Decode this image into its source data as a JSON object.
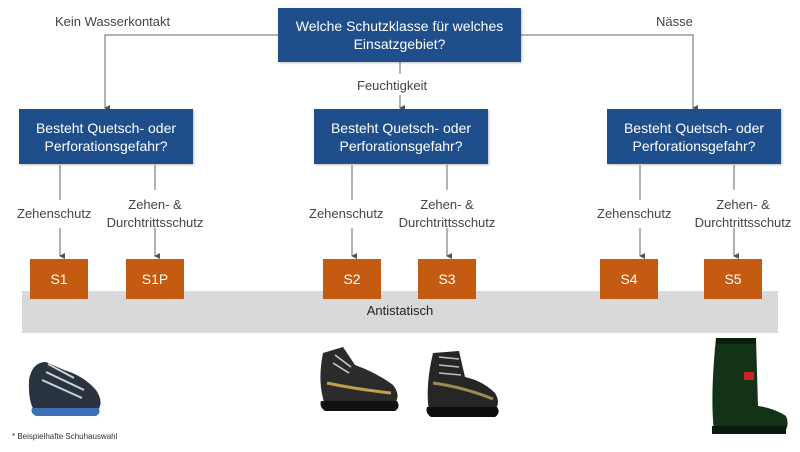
{
  "root": {
    "line1": "Welche Schutzklasse für welches",
    "line2": "Einsatzgebiet?"
  },
  "branches": {
    "left": "Kein Wasserkontakt",
    "middle": "Feuchtigkeit",
    "right": "Nässe"
  },
  "question": {
    "line1": "Besteht Quetsch- oder",
    "line2": "Perforationsgefahr?"
  },
  "options": {
    "toe": "Zehenschutz",
    "toe_pen_line1": "Zehen- &",
    "toe_pen_line2": "Durchtrittsschutz"
  },
  "classes": [
    "S1",
    "S1P",
    "S2",
    "S3",
    "S4",
    "S5"
  ],
  "band": "Antistatisch",
  "footnote": "* Beispielhafte Schuhauswahl",
  "colors": {
    "box": "#1f4e8c",
    "class": "#c55a11",
    "band": "#d9d9d9"
  },
  "icons": [
    "sport-shoe-image",
    "hiking-shoe-image",
    "safety-boot-image",
    "rubber-boot-image"
  ]
}
